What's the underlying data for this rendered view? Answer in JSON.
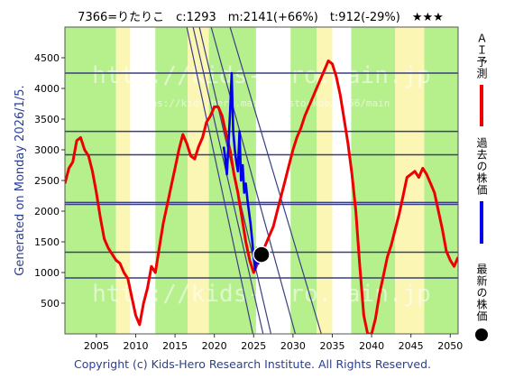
{
  "header": {
    "title": "7366=りたりこ　c:1293　m:2141(+66%)　t:912(-29%)　★★★"
  },
  "side": {
    "generated": "Generated on Monday 2026/1/5."
  },
  "legend": {
    "items": [
      {
        "label": "ＡＩ予測",
        "color": "#ee0000"
      },
      {
        "label": "過去の株価",
        "color": "#0000ee"
      },
      {
        "label": "最新の株価",
        "color": "#000000"
      }
    ]
  },
  "footer": {
    "copyright": "Copyright (c) Kids-Hero Research Institute. All Rights Reserved."
  },
  "watermark": {
    "text1": "http://kids-hero.main.jp",
    "text2": "https://kids-hero.main.jp/stockdb/7366/main",
    "text3": "http://kids-hero.main.jp"
  },
  "colors": {
    "prediction": "#ee0000",
    "past": "#0000ee",
    "green_band": "#b6f08c",
    "yellow_band": "#fbf6b4",
    "hline": "#3a3f80",
    "trend": "#3a3f80"
  },
  "chart_data": {
    "type": "line",
    "xlim": [
      2001,
      2051
    ],
    "ylim": [
      0,
      5000
    ],
    "x_ticks": [
      2005,
      2010,
      2015,
      2020,
      2025,
      2030,
      2035,
      2040,
      2045,
      2050
    ],
    "y_ticks": [
      500,
      1000,
      1500,
      2000,
      2500,
      3000,
      3500,
      4000,
      4500
    ],
    "current": {
      "year": 2026.0,
      "price": 1293
    },
    "horizontal_lines": [
      4250,
      3300,
      2920,
      2141,
      2110,
      1330,
      912
    ],
    "trend_lines": [
      {
        "from": [
          2016.5,
          5000
        ],
        "to": [
          2024.9,
          0
        ]
      },
      {
        "from": [
          2017.3,
          5000
        ],
        "to": [
          2026.2,
          0
        ]
      },
      {
        "from": [
          2018.1,
          5000
        ],
        "to": [
          2027.2,
          0
        ]
      },
      {
        "from": [
          2019.6,
          5000
        ],
        "to": [
          2030.3,
          0
        ]
      },
      {
        "from": [
          2022.0,
          5000
        ],
        "to": [
          2033.6,
          0
        ]
      }
    ],
    "green_bands": [
      [
        2001,
        2007.5
      ],
      [
        2012.5,
        2016.6
      ],
      [
        2019.3,
        2025.3
      ],
      [
        2029.7,
        2033.0
      ],
      [
        2037.4,
        2043.0
      ],
      [
        2046.7,
        2051
      ]
    ],
    "yellow_bands": [
      [
        2007.5,
        2009.3
      ],
      [
        2016.6,
        2019.3
      ],
      [
        2033.0,
        2035.0
      ],
      [
        2043.0,
        2046.7
      ]
    ],
    "series": [
      {
        "name": "ＡＩ予測",
        "color": "#ee0000",
        "x": [
          2001,
          2001.5,
          2002,
          2002.5,
          2003,
          2003.5,
          2004,
          2004.5,
          2005,
          2005.5,
          2006,
          2006.5,
          2007,
          2007.5,
          2008,
          2008.5,
          2009,
          2009.5,
          2010,
          2010.5,
          2011,
          2011.5,
          2012,
          2012.5,
          2013,
          2013.5,
          2014,
          2014.5,
          2015,
          2015.5,
          2016,
          2016.5,
          2017,
          2017.5,
          2018,
          2018.5,
          2019,
          2019.5,
          2020,
          2020.5,
          2021,
          2021.5,
          2022,
          2022.5,
          2023,
          2023.5,
          2024,
          2024.5,
          2025,
          2025.5,
          2026,
          2026.5,
          2027,
          2027.5,
          2028,
          2028.5,
          2029,
          2029.5,
          2030,
          2030.5,
          2031,
          2031.5,
          2032,
          2032.5,
          2033,
          2033.5,
          2034,
          2034.5,
          2035,
          2035.5,
          2036,
          2036.5,
          2037,
          2037.5,
          2038,
          2038.5,
          2039,
          2039.5,
          2040,
          2040.5,
          2041,
          2041.5,
          2042,
          2042.5,
          2043,
          2043.5,
          2044,
          2044.5,
          2045,
          2045.5,
          2046,
          2046.5,
          2047,
          2047.5,
          2048,
          2048.5,
          2049,
          2049.5,
          2050,
          2050.5,
          2051
        ],
        "y": [
          2450,
          2700,
          2800,
          3150,
          3200,
          3000,
          2900,
          2650,
          2300,
          1900,
          1550,
          1400,
          1300,
          1200,
          1150,
          1000,
          900,
          600,
          300,
          150,
          500,
          750,
          1100,
          1000,
          1400,
          1800,
          2100,
          2400,
          2700,
          3000,
          3250,
          3100,
          2900,
          2850,
          3050,
          3200,
          3450,
          3550,
          3700,
          3700,
          3550,
          3250,
          3000,
          2600,
          2300,
          1900,
          1500,
          1200,
          1000,
          1150,
          1293,
          1450,
          1600,
          1750,
          2000,
          2250,
          2500,
          2750,
          3000,
          3200,
          3350,
          3550,
          3700,
          3850,
          4000,
          4150,
          4300,
          4450,
          4400,
          4200,
          3900,
          3500,
          3100,
          2600,
          2000,
          1100,
          300,
          0,
          0,
          250,
          650,
          950,
          1250,
          1450,
          1700,
          1950,
          2250,
          2550,
          2600,
          2650,
          2550,
          2700,
          2600,
          2450,
          2300,
          2000,
          1700,
          1350,
          1200,
          1100,
          1250
        ]
      },
      {
        "name": "過去の株価",
        "color": "#0000ee",
        "x": [
          2021.2,
          2021.4,
          2021.6,
          2021.8,
          2022.0,
          2022.2,
          2022.4,
          2022.6,
          2022.8,
          2023.0,
          2023.2,
          2023.4,
          2023.6,
          2023.8,
          2024.0,
          2024.2,
          2024.4,
          2024.6,
          2024.8,
          2025.0,
          2025.2,
          2025.4,
          2025.6,
          2025.8,
          2026.0
        ],
        "y": [
          3050,
          2850,
          2600,
          3100,
          3600,
          4250,
          3300,
          3000,
          2800,
          2650,
          3300,
          2500,
          2750,
          2300,
          2450,
          2200,
          2000,
          1800,
          1550,
          1250,
          1050,
          1400,
          1150,
          1350,
          1293
        ]
      }
    ]
  }
}
